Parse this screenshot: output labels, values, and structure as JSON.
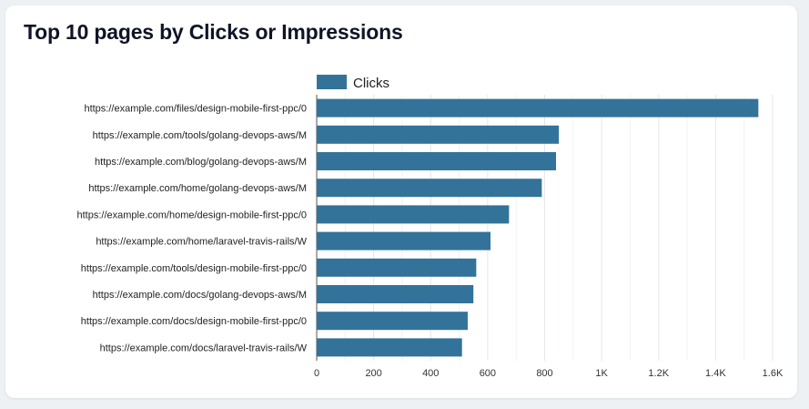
{
  "chart_data": {
    "type": "bar",
    "orientation": "horizontal",
    "title": "Top 10 pages by Clicks or Impressions",
    "xlabel": "",
    "ylabel": "",
    "categories": [
      "https://example.com/files/design-mobile-first-ppc/0",
      "https://example.com/tools/golang-devops-aws/M",
      "https://example.com/blog/golang-devops-aws/M",
      "https://example.com/home/golang-devops-aws/M",
      "https://example.com/home/design-mobile-first-ppc/0",
      "https://example.com/home/laravel-travis-rails/W",
      "https://example.com/tools/design-mobile-first-ppc/0",
      "https://example.com/docs/golang-devops-aws/M",
      "https://example.com/docs/design-mobile-first-ppc/0",
      "https://example.com/docs/laravel-travis-rails/W"
    ],
    "series": [
      {
        "name": "Clicks",
        "color": "#33739a",
        "values": [
          1550,
          850,
          840,
          790,
          675,
          610,
          560,
          550,
          530,
          510
        ]
      }
    ],
    "xlim": [
      0,
      1600
    ],
    "xticks": [
      0,
      200,
      400,
      600,
      800,
      1000,
      1200,
      1400,
      1600
    ],
    "xtick_labels": [
      "0",
      "200",
      "400",
      "600",
      "800",
      "1K",
      "1.2K",
      "1.4K",
      "1.6K"
    ],
    "grid": true,
    "legend_position": "top"
  }
}
